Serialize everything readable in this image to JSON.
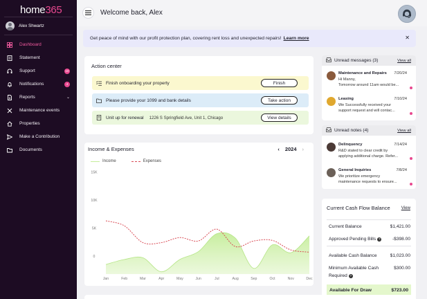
{
  "brand": {
    "logo_main": "home",
    "logo_accent": "365"
  },
  "user": {
    "name": "Alex Shwartz"
  },
  "nav": [
    {
      "label": "Dashboard",
      "icon": "dashboard-icon",
      "active": true
    },
    {
      "label": "Statement",
      "icon": "statement-icon"
    },
    {
      "label": "Support",
      "icon": "support-icon",
      "badge": "10"
    },
    {
      "label": "Notifications",
      "icon": "bell-icon",
      "badge": "4"
    },
    {
      "label": "Reports",
      "icon": "reports-icon",
      "chevron": true
    },
    {
      "label": "Maintenance events",
      "icon": "wrench-icon"
    },
    {
      "label": "Properties",
      "icon": "home-icon"
    },
    {
      "label": "Make a Contribution",
      "icon": "send-icon"
    },
    {
      "label": "Documents",
      "icon": "folder-icon"
    }
  ],
  "header": {
    "welcome": "Welcome back, Alex"
  },
  "banner": {
    "text": "Get peace of mind with our profit protection plan, covering rent loss and unexpected repairs!",
    "link": "Learn more"
  },
  "action_center": {
    "title": "Action center",
    "rows": [
      {
        "text": "Finish onboarding your property",
        "button": "Finish",
        "bg": "#fbf8cf"
      },
      {
        "text": "Please provide your 1099 and bank details",
        "button": "Take action",
        "bg": "#dcecf8"
      },
      {
        "text": "Unit up for renewal",
        "address": "1226 S Springfield Ave, Unit 1, Chicago",
        "button": "View details",
        "bg": "#ebf7dd"
      }
    ]
  },
  "income_chart": {
    "title": "Income & Expenses",
    "year": "2024",
    "legend_income": "Income",
    "legend_expenses": "Expenses"
  },
  "chart_data": {
    "type": "area",
    "categories": [
      "Jan",
      "Feb",
      "Mar",
      "Apr",
      "May",
      "Jun",
      "Jul",
      "Aug",
      "Sep",
      "Oct",
      "Nov",
      "Dec"
    ],
    "y_ticks": [
      "15K",
      "10K",
      "5K",
      "0"
    ],
    "ylim": [
      0,
      15000
    ],
    "series": [
      {
        "name": "Income",
        "type": "area",
        "color": "#c5ed9a",
        "values": [
          -1500,
          -600,
          -300,
          -2800,
          -600,
          800,
          4000,
          3200,
          -2200,
          2000,
          600,
          3600
        ]
      },
      {
        "name": "Expenses",
        "type": "line",
        "color": "#d94a54",
        "values": [
          6300,
          5400,
          2400,
          2400,
          3300,
          2700,
          4800,
          1700,
          2700,
          2800,
          1100,
          700
        ]
      }
    ]
  },
  "messages": {
    "title": "Unread messages (3)",
    "view_all": "View all",
    "items": [
      {
        "name": "Maintenance and Repairs",
        "date": "7/20/24",
        "line1": "Hi Manny,",
        "line2": "Tomorrow around 11am would be...",
        "avatar": "#8a5a3c"
      },
      {
        "name": "Leasing",
        "date": "7/10/24",
        "line1": "We Successfully received your",
        "line2": "support request and will contac...",
        "avatar": "#e0a82f"
      }
    ]
  },
  "notes": {
    "title": "Unread notes (4)",
    "view_all": "View all",
    "items": [
      {
        "name": "Delinquency",
        "date": "7/14/24",
        "line1": "R&D stated to clear credit by",
        "line2": "applying additional charge. Refer...",
        "avatar": "#4b3a36"
      },
      {
        "name": "General Inquiries",
        "date": "7/8/24",
        "line1": "We prioritize emergency",
        "line2": "maintenance requests to ensure...",
        "avatar": "#6b6058"
      }
    ]
  },
  "cash_flow": {
    "title": "Current Cash Flow Balance",
    "view": "View",
    "rows": [
      {
        "label": "Current Balance",
        "value": "$1,421.00"
      },
      {
        "label": "Approved Pending Bills",
        "value": "-$398.00",
        "help": true
      },
      {
        "label": "Available Cash Balance",
        "value": "$1,023.00"
      },
      {
        "label": "Minimum Available Cash",
        "label2": "Required",
        "value": "$300.00",
        "help": true
      }
    ],
    "draw_label": "Available For Draw",
    "draw_value": "$723.00"
  }
}
